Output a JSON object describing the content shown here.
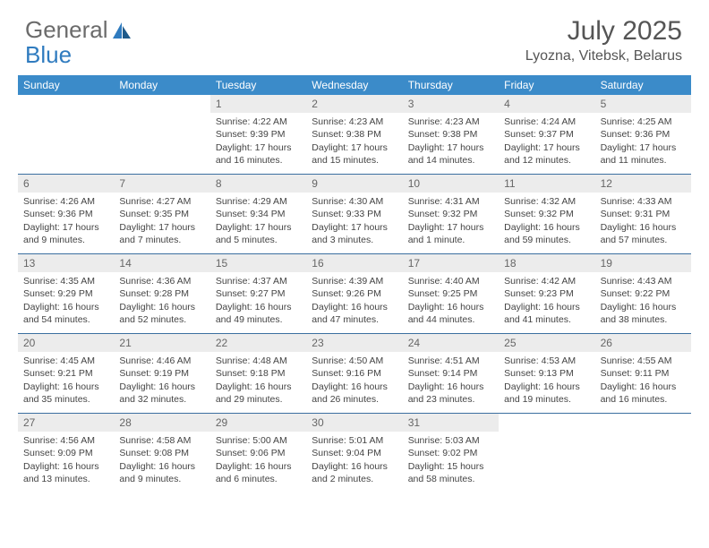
{
  "brand": {
    "word1": "General",
    "word2": "Blue"
  },
  "title": "July 2025",
  "location": "Lyozna, Vitebsk, Belarus",
  "colors": {
    "header_bg": "#3b8bc9",
    "header_text": "#ffffff",
    "daynum_bg": "#ececec",
    "week_border": "#3b6fa0",
    "body_text": "#444444",
    "brand_gray": "#6b6b6b",
    "brand_blue": "#2f7bbf"
  },
  "day_names": [
    "Sunday",
    "Monday",
    "Tuesday",
    "Wednesday",
    "Thursday",
    "Friday",
    "Saturday"
  ],
  "first_day_index": 2,
  "days": [
    {
      "n": 1,
      "sunrise": "4:22 AM",
      "sunset": "9:39 PM",
      "daylight": "17 hours and 16 minutes."
    },
    {
      "n": 2,
      "sunrise": "4:23 AM",
      "sunset": "9:38 PM",
      "daylight": "17 hours and 15 minutes."
    },
    {
      "n": 3,
      "sunrise": "4:23 AM",
      "sunset": "9:38 PM",
      "daylight": "17 hours and 14 minutes."
    },
    {
      "n": 4,
      "sunrise": "4:24 AM",
      "sunset": "9:37 PM",
      "daylight": "17 hours and 12 minutes."
    },
    {
      "n": 5,
      "sunrise": "4:25 AM",
      "sunset": "9:36 PM",
      "daylight": "17 hours and 11 minutes."
    },
    {
      "n": 6,
      "sunrise": "4:26 AM",
      "sunset": "9:36 PM",
      "daylight": "17 hours and 9 minutes."
    },
    {
      "n": 7,
      "sunrise": "4:27 AM",
      "sunset": "9:35 PM",
      "daylight": "17 hours and 7 minutes."
    },
    {
      "n": 8,
      "sunrise": "4:29 AM",
      "sunset": "9:34 PM",
      "daylight": "17 hours and 5 minutes."
    },
    {
      "n": 9,
      "sunrise": "4:30 AM",
      "sunset": "9:33 PM",
      "daylight": "17 hours and 3 minutes."
    },
    {
      "n": 10,
      "sunrise": "4:31 AM",
      "sunset": "9:32 PM",
      "daylight": "17 hours and 1 minute."
    },
    {
      "n": 11,
      "sunrise": "4:32 AM",
      "sunset": "9:32 PM",
      "daylight": "16 hours and 59 minutes."
    },
    {
      "n": 12,
      "sunrise": "4:33 AM",
      "sunset": "9:31 PM",
      "daylight": "16 hours and 57 minutes."
    },
    {
      "n": 13,
      "sunrise": "4:35 AM",
      "sunset": "9:29 PM",
      "daylight": "16 hours and 54 minutes."
    },
    {
      "n": 14,
      "sunrise": "4:36 AM",
      "sunset": "9:28 PM",
      "daylight": "16 hours and 52 minutes."
    },
    {
      "n": 15,
      "sunrise": "4:37 AM",
      "sunset": "9:27 PM",
      "daylight": "16 hours and 49 minutes."
    },
    {
      "n": 16,
      "sunrise": "4:39 AM",
      "sunset": "9:26 PM",
      "daylight": "16 hours and 47 minutes."
    },
    {
      "n": 17,
      "sunrise": "4:40 AM",
      "sunset": "9:25 PM",
      "daylight": "16 hours and 44 minutes."
    },
    {
      "n": 18,
      "sunrise": "4:42 AM",
      "sunset": "9:23 PM",
      "daylight": "16 hours and 41 minutes."
    },
    {
      "n": 19,
      "sunrise": "4:43 AM",
      "sunset": "9:22 PM",
      "daylight": "16 hours and 38 minutes."
    },
    {
      "n": 20,
      "sunrise": "4:45 AM",
      "sunset": "9:21 PM",
      "daylight": "16 hours and 35 minutes."
    },
    {
      "n": 21,
      "sunrise": "4:46 AM",
      "sunset": "9:19 PM",
      "daylight": "16 hours and 32 minutes."
    },
    {
      "n": 22,
      "sunrise": "4:48 AM",
      "sunset": "9:18 PM",
      "daylight": "16 hours and 29 minutes."
    },
    {
      "n": 23,
      "sunrise": "4:50 AM",
      "sunset": "9:16 PM",
      "daylight": "16 hours and 26 minutes."
    },
    {
      "n": 24,
      "sunrise": "4:51 AM",
      "sunset": "9:14 PM",
      "daylight": "16 hours and 23 minutes."
    },
    {
      "n": 25,
      "sunrise": "4:53 AM",
      "sunset": "9:13 PM",
      "daylight": "16 hours and 19 minutes."
    },
    {
      "n": 26,
      "sunrise": "4:55 AM",
      "sunset": "9:11 PM",
      "daylight": "16 hours and 16 minutes."
    },
    {
      "n": 27,
      "sunrise": "4:56 AM",
      "sunset": "9:09 PM",
      "daylight": "16 hours and 13 minutes."
    },
    {
      "n": 28,
      "sunrise": "4:58 AM",
      "sunset": "9:08 PM",
      "daylight": "16 hours and 9 minutes."
    },
    {
      "n": 29,
      "sunrise": "5:00 AM",
      "sunset": "9:06 PM",
      "daylight": "16 hours and 6 minutes."
    },
    {
      "n": 30,
      "sunrise": "5:01 AM",
      "sunset": "9:04 PM",
      "daylight": "16 hours and 2 minutes."
    },
    {
      "n": 31,
      "sunrise": "5:03 AM",
      "sunset": "9:02 PM",
      "daylight": "15 hours and 58 minutes."
    }
  ],
  "labels": {
    "sunrise": "Sunrise:",
    "sunset": "Sunset:",
    "daylight": "Daylight:"
  }
}
